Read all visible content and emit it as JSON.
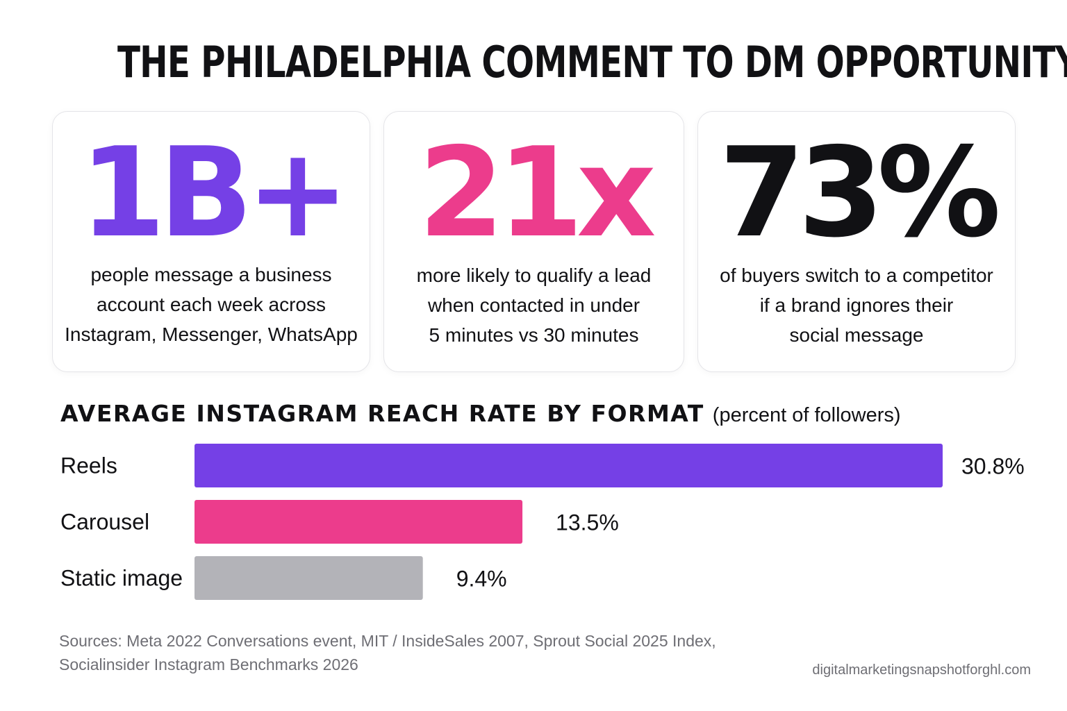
{
  "title": "THE PHILADELPHIA COMMENT TO DM OPPORTUNITY",
  "stats": [
    {
      "value": "1B+",
      "color": "#7540e6",
      "description": [
        "people message a business",
        "account each week across",
        "Instagram, Messenger, WhatsApp"
      ]
    },
    {
      "value": "21x",
      "color": "#ec3c8c",
      "description": [
        "more likely to qualify a lead",
        "when contacted in under",
        "5 minutes vs 30 minutes"
      ]
    },
    {
      "value": "73%",
      "color": "#111114",
      "description": [
        "of buyers switch to a competitor",
        "if a brand ignores their",
        "social message"
      ]
    }
  ],
  "chart_data": {
    "type": "bar",
    "orientation": "horizontal",
    "title": "AVERAGE INSTAGRAM REACH RATE BY FORMAT",
    "subtitle": "(percent of followers)",
    "categories": [
      "Reels",
      "Carousel",
      "Static image"
    ],
    "values": [
      30.8,
      13.5,
      9.4
    ],
    "value_labels": [
      "30.8%",
      "13.5%",
      "9.4%"
    ],
    "colors": [
      "#7540e6",
      "#ec3c8c",
      "#b3b3b8"
    ],
    "xlim": [
      0,
      30.8
    ],
    "grid": false,
    "legend": "none"
  },
  "sources": [
    "Sources: Meta 2022 Conversations event, MIT / InsideSales 2007, Sprout Social 2025 Index,",
    "Socialinsider Instagram Benchmarks 2026"
  ],
  "website": "digitalmarketingsnapshotforghl.com"
}
